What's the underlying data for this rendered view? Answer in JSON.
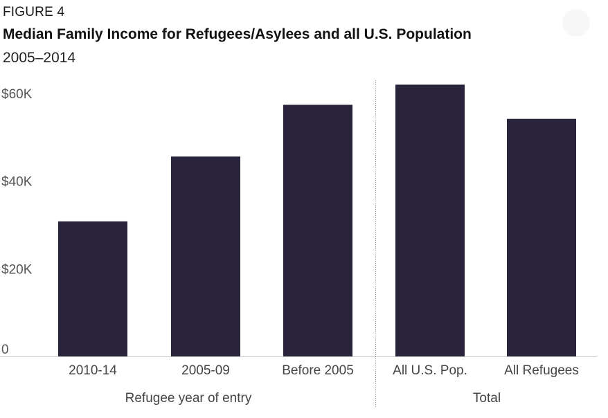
{
  "figure_label": "FIGURE 4",
  "title": "Median Family Income for Refugees/Asylees and all U.S. Population",
  "subtitle": "2005–2014",
  "chart_data": {
    "type": "bar",
    "categories": [
      "2010-14",
      "2005-09",
      "Before 2005",
      "All U.S. Pop.",
      "All Refugees"
    ],
    "values": [
      30800,
      45600,
      57400,
      62000,
      54200
    ],
    "groups": [
      {
        "label": "Refugee year of entry",
        "categories": [
          "2010-14",
          "2005-09",
          "Before 2005"
        ]
      },
      {
        "label": "Total",
        "categories": [
          "All U.S. Pop.",
          "All Refugees"
        ]
      }
    ],
    "y_ticks": [
      {
        "value": 0,
        "label": "0"
      },
      {
        "value": 20000,
        "label": "$20K"
      },
      {
        "value": 40000,
        "label": "$40K"
      },
      {
        "value": 60000,
        "label": "$60K"
      }
    ],
    "ylim": [
      0,
      62000
    ],
    "bar_color": "#29233b",
    "grid": false,
    "legend": "none"
  }
}
